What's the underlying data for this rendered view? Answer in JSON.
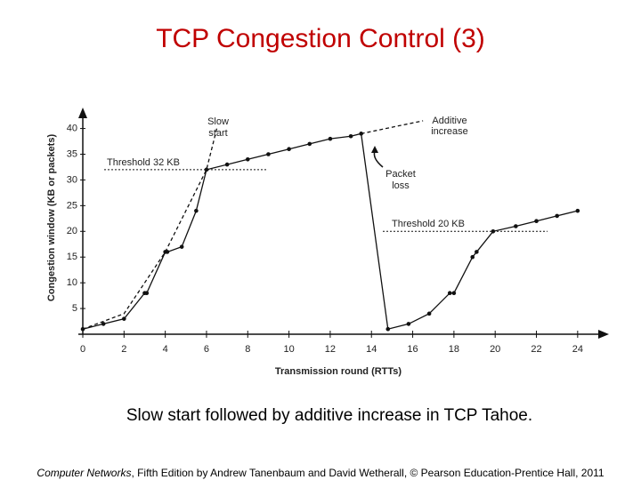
{
  "slide": {
    "title": "TCP Congestion Control (3)",
    "caption": "Slow start followed by additive increase in TCP Tahoe.",
    "footer_italic": "Computer Networks",
    "footer_rest": ", Fifth Edition by Andrew Tanenbaum and David Wetherall, © Pearson Education-Prentice Hall, 2011"
  },
  "chart_data": {
    "type": "line",
    "x_label": "Transmission round (RTTs)",
    "y_label": "Congestion window (KB or packets)",
    "xlim": [
      0,
      25
    ],
    "xticks": [
      0,
      2,
      4,
      6,
      8,
      10,
      12,
      14,
      16,
      18,
      20,
      22,
      24
    ],
    "ylim": [
      0,
      42
    ],
    "yticks": [
      5,
      10,
      15,
      20,
      25,
      30,
      35,
      40
    ],
    "color": "#111111",
    "series": [
      {
        "dashed": false,
        "markers": true,
        "x": [
          0,
          1,
          2,
          3,
          3.1,
          4,
          4.1,
          4.8,
          5.5,
          6,
          7,
          8,
          9,
          10,
          11,
          12,
          13,
          13.5,
          14.8,
          15.8,
          16.8,
          17.8,
          18,
          18.9,
          19.1,
          19.9,
          21,
          22,
          23,
          24
        ],
        "values": [
          1,
          2,
          3,
          8,
          8,
          16,
          16,
          17,
          24,
          32,
          33,
          34,
          35,
          36,
          37,
          38,
          38.5,
          39,
          1,
          2,
          4,
          8,
          8,
          15,
          16,
          20,
          21,
          22,
          23,
          24
        ]
      },
      {
        "dashed": true,
        "markers": false,
        "x": [
          0,
          2,
          4,
          5,
          6,
          6.5,
          13.5,
          13.5,
          16.5
        ],
        "values": [
          1,
          4,
          16,
          24,
          32,
          40,
          null,
          39,
          41.5
        ]
      }
    ],
    "thresholds": [
      {
        "label": "Threshold 32 KB",
        "value": 32
      },
      {
        "label": "Threshold 20 KB",
        "value": 20
      }
    ],
    "annotations": {
      "slow_start": [
        "Slow",
        "start"
      ],
      "additive": [
        "Additive",
        "increase"
      ],
      "loss": [
        "Packet",
        "loss"
      ]
    }
  }
}
